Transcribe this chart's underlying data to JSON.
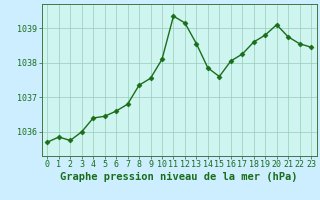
{
  "x": [
    0,
    1,
    2,
    3,
    4,
    5,
    6,
    7,
    8,
    9,
    10,
    11,
    12,
    13,
    14,
    15,
    16,
    17,
    18,
    19,
    20,
    21,
    22,
    23
  ],
  "y": [
    1035.7,
    1035.85,
    1035.75,
    1036.0,
    1036.4,
    1036.45,
    1036.6,
    1036.8,
    1037.35,
    1037.55,
    1038.1,
    1039.35,
    1039.15,
    1038.55,
    1037.85,
    1037.6,
    1038.05,
    1038.25,
    1038.6,
    1038.8,
    1039.1,
    1038.75,
    1038.55,
    1038.45
  ],
  "line_color": "#1a6e1a",
  "marker": "D",
  "markersize": 2.5,
  "linewidth": 1.0,
  "background_color": "#cceeff",
  "plot_bg_color": "#cef5ef",
  "grid_color": "#99ccbb",
  "xlabel": "Graphe pression niveau de la mer (hPa)",
  "xlabel_color": "#1a6e1a",
  "xlabel_fontsize": 7.5,
  "ylabel_ticks": [
    1036,
    1037,
    1038,
    1039
  ],
  "ylim": [
    1035.3,
    1039.7
  ],
  "xlim": [
    -0.5,
    23.5
  ],
  "tick_color": "#1a6e1a",
  "tick_fontsize": 6.0,
  "spine_color": "#447744"
}
